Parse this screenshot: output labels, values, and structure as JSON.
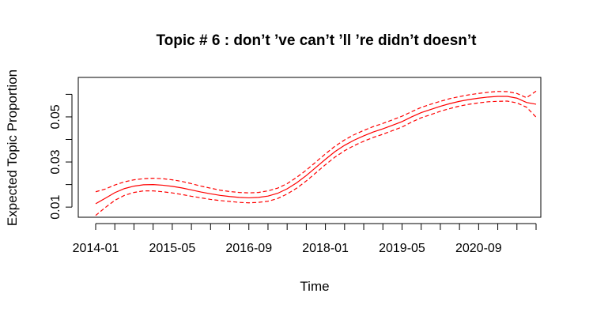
{
  "chart_data": {
    "type": "line",
    "title": "Topic # 6 :  don’t ’ve can’t ’ll ’re didn’t doesn’t",
    "xlabel": "Time",
    "ylabel": "Expected Topic Proportion",
    "x_tick_labels": [
      "2014-01",
      "2015-05",
      "2016-09",
      "2018-01",
      "2019-05",
      "2020-09"
    ],
    "y_tick_labels": [
      "0.01",
      "0.03",
      "0.05"
    ],
    "y_ticks": [
      0.01,
      0.02,
      0.03,
      0.04,
      0.05,
      0.06
    ],
    "ylim": [
      0.0055,
      0.0675
    ],
    "x": [
      "2014-01",
      "2014-03",
      "2014-05",
      "2014-07",
      "2014-09",
      "2014-11",
      "2015-01",
      "2015-03",
      "2015-05",
      "2015-07",
      "2015-09",
      "2015-11",
      "2016-01",
      "2016-03",
      "2016-05",
      "2016-07",
      "2016-09",
      "2016-11",
      "2017-01",
      "2017-03",
      "2017-05",
      "2017-07",
      "2017-09",
      "2017-11",
      "2018-01",
      "2018-03",
      "2018-05",
      "2018-07",
      "2018-09",
      "2018-11",
      "2019-01",
      "2019-03",
      "2019-05",
      "2019-07",
      "2019-09",
      "2019-11",
      "2020-01",
      "2020-03",
      "2020-05",
      "2020-07",
      "2020-09",
      "2020-11",
      "2021-01",
      "2021-03",
      "2021-05",
      "2021-07",
      "2021-09"
    ],
    "series": [
      {
        "line_style": "solid",
        "color": "#ff0000",
        "values": [
          0.0115,
          0.0139,
          0.0164,
          0.0182,
          0.0193,
          0.0199,
          0.02,
          0.0197,
          0.0192,
          0.0185,
          0.0176,
          0.0167,
          0.0159,
          0.0152,
          0.0147,
          0.0143,
          0.0141,
          0.0143,
          0.0149,
          0.0161,
          0.0181,
          0.0208,
          0.024,
          0.0276,
          0.0312,
          0.0346,
          0.0374,
          0.0397,
          0.0416,
          0.0433,
          0.0447,
          0.0463,
          0.0479,
          0.05,
          0.0519,
          0.0533,
          0.0547,
          0.0559,
          0.0569,
          0.0577,
          0.0583,
          0.0588,
          0.0591,
          0.0591,
          0.0583,
          0.0564,
          0.0556
        ]
      },
      {
        "line_style": "dashed",
        "color": "#ff0000",
        "values": [
          0.0168,
          0.018,
          0.0198,
          0.0212,
          0.0221,
          0.0226,
          0.0228,
          0.0226,
          0.0221,
          0.0214,
          0.0204,
          0.0193,
          0.0184,
          0.0175,
          0.0169,
          0.0165,
          0.0163,
          0.0165,
          0.0172,
          0.0184,
          0.0204,
          0.0232,
          0.0264,
          0.03,
          0.0336,
          0.037,
          0.0398,
          0.0421,
          0.044,
          0.0457,
          0.0471,
          0.0487,
          0.0503,
          0.0523,
          0.0542,
          0.0556,
          0.0569,
          0.0581,
          0.059,
          0.0598,
          0.0604,
          0.0609,
          0.0613,
          0.0612,
          0.0604,
          0.0585,
          0.0614
        ]
      },
      {
        "line_style": "dashed",
        "color": "#ff0000",
        "values": [
          0.0063,
          0.0098,
          0.013,
          0.0152,
          0.0165,
          0.0172,
          0.0172,
          0.0168,
          0.0163,
          0.0156,
          0.0148,
          0.0141,
          0.0134,
          0.0129,
          0.0125,
          0.0121,
          0.0119,
          0.0121,
          0.0126,
          0.0138,
          0.0158,
          0.0184,
          0.0216,
          0.0252,
          0.0288,
          0.0322,
          0.035,
          0.0373,
          0.0392,
          0.0409,
          0.0423,
          0.0439,
          0.0455,
          0.0477,
          0.0496,
          0.051,
          0.0525,
          0.0537,
          0.0548,
          0.0556,
          0.0562,
          0.0567,
          0.0569,
          0.057,
          0.0562,
          0.0543,
          0.0499
        ]
      }
    ],
    "grid": false,
    "legend": "none"
  }
}
